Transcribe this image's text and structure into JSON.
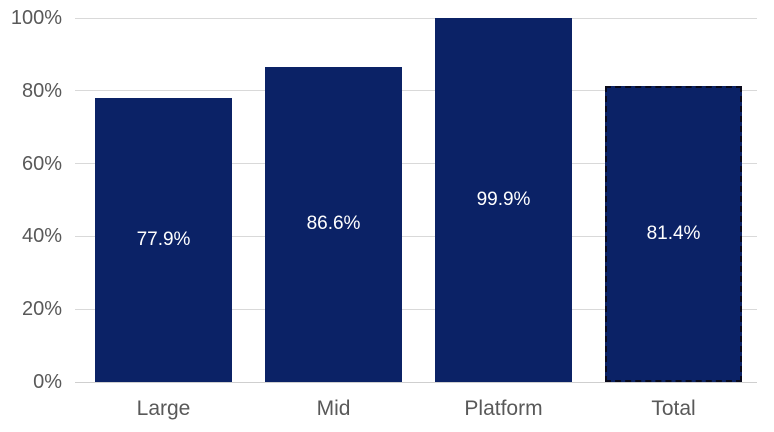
{
  "chart_data": {
    "type": "bar",
    "title": "",
    "xlabel": "",
    "ylabel": "",
    "categories": [
      "Large",
      "Mid",
      "Platform",
      "Total"
    ],
    "values": [
      77.9,
      86.6,
      99.9,
      81.4
    ],
    "value_labels": [
      "77.9%",
      "86.6%",
      "99.9%",
      "81.4%"
    ],
    "ylim": [
      0,
      100
    ],
    "yticks": [
      0,
      20,
      40,
      60,
      80,
      100
    ],
    "ytick_labels": [
      "0%",
      "20%",
      "40%",
      "60%",
      "80%",
      "100%"
    ],
    "grid": true,
    "legend": "none",
    "bar_style_notes": "last bar (Total) drawn with dark dashed outline",
    "dashed_bar_index": 3,
    "colors": {
      "bar_fill": "#0B2266",
      "dashed_border": "#0A0A1C",
      "gridline": "#D9D9D9",
      "axis_line": "#CFCFCF",
      "axis_text": "#595959",
      "data_label_text": "#FFFFFF",
      "background": "#FFFFFF"
    }
  }
}
